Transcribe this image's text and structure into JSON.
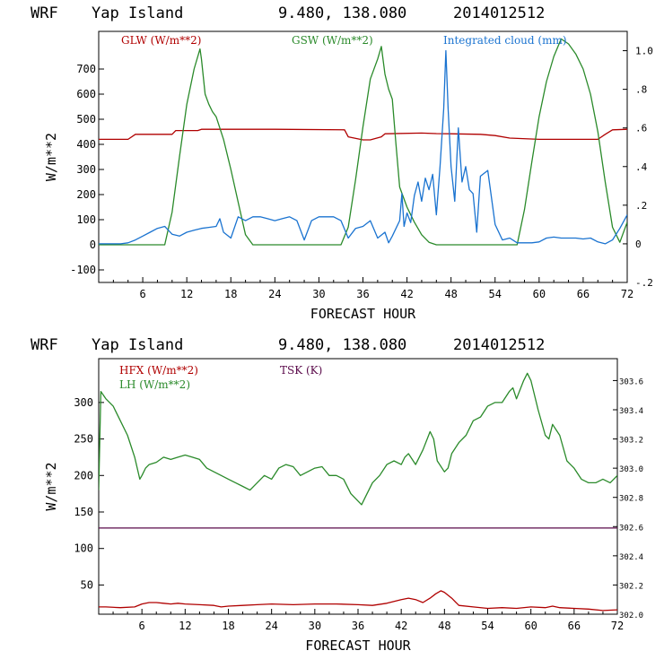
{
  "colors": {
    "red": "#b00000",
    "green": "#2a8a2a",
    "blue": "#1a73d0",
    "purple": "#5a0a4a",
    "black": "#000000"
  },
  "chart_data": [
    {
      "type": "line",
      "header": {
        "model": "WRF",
        "location": "Yap Island",
        "coords": "9.480, 138.080",
        "date": "2014012512"
      },
      "xlabel": "FORECAST HOUR",
      "ylabel": "W/m**2",
      "xlim": [
        0,
        72
      ],
      "ylim": [
        -150,
        850
      ],
      "y2lim": [
        -0.2,
        1.1
      ],
      "xticks": [
        "6",
        "12",
        "18",
        "24",
        "30",
        "36",
        "42",
        "48",
        "54",
        "60",
        "66",
        "72"
      ],
      "yticks": [
        "-100",
        "0",
        "100",
        "200",
        "300",
        "400",
        "500",
        "600",
        "700"
      ],
      "y2ticks": [
        "-.2",
        "0",
        ".2",
        ".4",
        ".6",
        ".8",
        "1.0"
      ],
      "y2tick_values": [
        -0.2,
        0,
        0.2,
        0.4,
        0.6,
        0.8,
        1.0
      ],
      "legend": [
        "GLW (W/m**2)",
        "GSW (W/m**2)",
        "Integrated cloud (mm)"
      ],
      "series": [
        {
          "name": "GLW (W/m**2)",
          "color": "red",
          "axis": "left",
          "x": [
            0,
            4,
            5,
            10,
            10.5,
            13.5,
            14,
            20,
            24,
            33.5,
            34,
            36,
            37,
            38.5,
            39,
            44,
            46,
            48,
            52,
            54,
            56,
            60,
            64,
            68,
            69,
            70,
            72
          ],
          "y": [
            420,
            420,
            440,
            440,
            455,
            455,
            460,
            460,
            460,
            458,
            430,
            418,
            418,
            430,
            442,
            445,
            443,
            442,
            440,
            435,
            425,
            420,
            420,
            420,
            440,
            458,
            460
          ]
        },
        {
          "name": "GSW (W/m**2)",
          "color": "green",
          "axis": "left",
          "x": [
            0,
            9,
            10,
            11,
            12,
            13,
            13.8,
            14,
            14.5,
            15,
            15.5,
            16,
            17,
            18,
            19,
            20,
            21,
            33,
            34,
            35,
            36,
            37,
            38,
            38.5,
            39,
            39.5,
            40,
            40.5,
            41,
            42,
            43,
            44,
            45,
            46,
            57,
            58,
            59,
            60,
            61,
            62,
            63,
            64,
            65,
            66,
            67,
            68,
            69,
            70,
            71,
            72
          ],
          "y": [
            0,
            0,
            130,
            350,
            560,
            700,
            780,
            740,
            600,
            560,
            530,
            510,
            420,
            300,
            170,
            40,
            0,
            0,
            70,
            260,
            470,
            660,
            740,
            790,
            680,
            620,
            580,
            400,
            230,
            150,
            90,
            40,
            10,
            0,
            0,
            140,
            330,
            510,
            650,
            750,
            820,
            800,
            760,
            700,
            600,
            450,
            250,
            70,
            10,
            90
          ]
        },
        {
          "name": "Integrated cloud (mm)",
          "color": "blue",
          "axis": "right",
          "x": [
            0,
            3,
            4,
            5,
            6,
            7,
            8,
            9,
            9.5,
            10,
            11,
            12,
            13,
            14,
            15,
            16,
            16.5,
            17,
            18,
            19,
            20,
            21,
            22,
            23,
            24,
            25,
            26,
            27,
            28,
            29,
            30,
            31,
            32,
            33,
            34,
            35,
            36,
            37,
            38,
            39,
            39.5,
            40,
            41,
            41.3,
            41.6,
            42,
            42.5,
            43,
            43.5,
            44,
            44.5,
            45,
            45.5,
            46,
            46.5,
            47,
            47.3,
            47.6,
            48,
            48.5,
            49,
            49.5,
            50,
            50.5,
            51,
            51.5,
            52,
            53,
            54,
            55,
            56,
            57,
            58,
            59,
            60,
            61,
            62,
            63,
            64,
            65,
            66,
            67,
            68,
            69,
            70,
            71,
            72
          ],
          "y": [
            0,
            0,
            0.005,
            0.02,
            0.04,
            0.06,
            0.08,
            0.09,
            0.07,
            0.05,
            0.04,
            0.06,
            0.07,
            0.08,
            0.085,
            0.09,
            0.13,
            0.06,
            0.03,
            0.14,
            0.12,
            0.14,
            0.14,
            0.13,
            0.12,
            0.13,
            0.14,
            0.12,
            0.02,
            0.12,
            0.14,
            0.14,
            0.14,
            0.12,
            0.03,
            0.08,
            0.09,
            0.12,
            0.03,
            0.06,
            0.005,
            0.04,
            0.12,
            0.26,
            0.09,
            0.16,
            0.11,
            0.25,
            0.32,
            0.22,
            0.34,
            0.28,
            0.36,
            0.15,
            0.4,
            0.7,
            1.0,
            0.7,
            0.4,
            0.22,
            0.6,
            0.32,
            0.4,
            0.28,
            0.26,
            0.06,
            0.35,
            0.38,
            0.1,
            0.02,
            0.03,
            0.005,
            0.005,
            0.005,
            0.01,
            0.03,
            0.035,
            0.03,
            0.03,
            0.03,
            0.025,
            0.03,
            0.01,
            0,
            0.02,
            0.08,
            0.15
          ]
        }
      ]
    },
    {
      "type": "line",
      "header": {
        "model": "WRF",
        "location": "Yap Island",
        "coords": "9.480, 138.080",
        "date": "2014012512"
      },
      "xlabel": "FORECAST HOUR",
      "ylabel": "W/m**2",
      "xlim": [
        0,
        72
      ],
      "ylim": [
        10,
        360
      ],
      "y2lim": [
        302.0,
        303.75
      ],
      "xticks": [
        "6",
        "12",
        "18",
        "24",
        "30",
        "36",
        "42",
        "48",
        "54",
        "60",
        "66",
        "72"
      ],
      "yticks": [
        "50",
        "100",
        "150",
        "200",
        "250",
        "300"
      ],
      "y2ticks": [
        "302.0",
        "302.2",
        "302.4",
        "302.6",
        "302.8",
        "303.0",
        "303.2",
        "303.4",
        "303.6"
      ],
      "y2tick_values": [
        302.0,
        302.2,
        302.4,
        302.6,
        302.8,
        303.0,
        303.2,
        303.4,
        303.6
      ],
      "legend": [
        "HFX (W/m**2)",
        "LH (W/m**2)",
        "TSK (K)"
      ],
      "series": [
        {
          "name": "HFX (W/m**2)",
          "color": "red",
          "axis": "left",
          "x": [
            0,
            1,
            3,
            5,
            6,
            7,
            8,
            9,
            10,
            11,
            12,
            14,
            16,
            17,
            18,
            20,
            22,
            24,
            27,
            30,
            33,
            36,
            38,
            40,
            42,
            43,
            44,
            45,
            46,
            46.8,
            47.5,
            48,
            49,
            50,
            52,
            54,
            56,
            58,
            60,
            62,
            63,
            64,
            66,
            68,
            70,
            72
          ],
          "y": [
            20,
            20,
            19,
            20,
            24,
            26,
            26,
            25,
            24,
            25,
            24,
            23,
            22,
            20,
            21,
            22,
            23,
            24,
            23,
            24,
            24,
            23,
            22,
            25,
            30,
            32,
            30,
            26,
            32,
            38,
            42,
            40,
            32,
            22,
            20,
            18,
            19,
            18,
            20,
            19,
            21,
            19,
            18,
            17,
            15,
            16
          ]
        },
        {
          "name": "LH (W/m**2)",
          "color": "green",
          "axis": "left",
          "x": [
            0,
            0.3,
            1,
            2,
            3,
            4,
            5,
            5.7,
            6,
            6.5,
            7,
            8,
            9,
            10,
            11,
            12,
            13,
            14,
            15,
            16,
            17,
            18,
            19,
            20,
            21,
            22,
            23,
            24,
            25,
            26,
            27,
            28,
            29,
            30,
            31,
            32,
            33,
            34,
            35,
            36,
            36.5,
            37,
            38,
            39,
            40,
            41,
            42,
            42.5,
            43,
            44,
            45,
            46,
            46.5,
            47,
            48,
            48.5,
            49,
            50,
            51,
            52,
            53,
            54,
            55,
            56,
            57,
            57.5,
            58,
            59,
            59.5,
            60,
            61,
            62,
            62.5,
            63,
            64,
            65,
            66,
            67,
            68,
            69,
            70,
            71,
            72
          ],
          "y": [
            180,
            315,
            305,
            295,
            275,
            255,
            225,
            195,
            200,
            210,
            215,
            218,
            225,
            222,
            225,
            228,
            225,
            222,
            210,
            205,
            200,
            195,
            190,
            185,
            180,
            190,
            200,
            195,
            210,
            215,
            212,
            200,
            205,
            210,
            212,
            200,
            200,
            195,
            175,
            165,
            160,
            170,
            190,
            200,
            215,
            220,
            215,
            225,
            230,
            215,
            235,
            260,
            250,
            220,
            205,
            210,
            230,
            245,
            255,
            275,
            280,
            295,
            300,
            300,
            315,
            320,
            305,
            330,
            340,
            330,
            290,
            255,
            250,
            270,
            255,
            220,
            210,
            195,
            190,
            190,
            195,
            190,
            200
          ]
        },
        {
          "name": "TSK (K)",
          "color": "purple",
          "axis": "right",
          "x": [
            0,
            72
          ],
          "y": [
            302.59,
            302.59
          ]
        }
      ]
    }
  ]
}
